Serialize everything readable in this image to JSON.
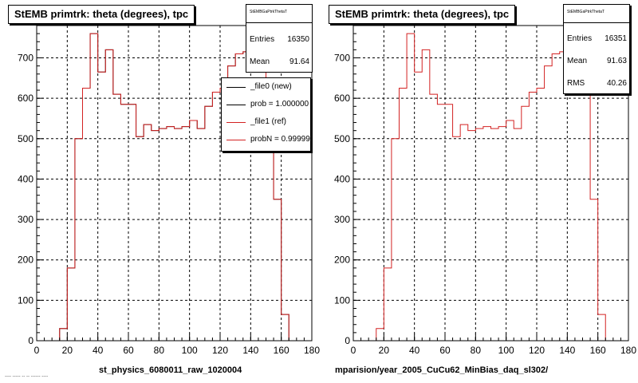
{
  "colors": {
    "new": "#000000",
    "ref": "#d32222",
    "grid": "#000000",
    "frame": "#000000"
  },
  "left": {
    "title": "StEMB primtrk: theta (degrees), tpc",
    "stats": {
      "name": "StEMBGaPtrkThetaT",
      "rows": [
        {
          "label": "Entries",
          "value": "16350"
        },
        {
          "label": "Mean",
          "value": "91.64"
        }
      ]
    },
    "legend": [
      {
        "label": "_file0 (new)",
        "color": "new"
      },
      {
        "label": "prob = 1.000000",
        "color": "new"
      },
      {
        "label": "_file1 (ref)",
        "color": "ref"
      },
      {
        "label": "probN = 0.999999",
        "color": "ref"
      }
    ],
    "footer": "st_physics_6080011_raw_1020004",
    "bottom_left_text": "---- ----- -- -- ------ ----"
  },
  "right": {
    "title": "StEMB primtrk: theta (degrees), tpc",
    "stats": {
      "name": "StEMBGaPtrkThetaT",
      "rows": [
        {
          "label": "Entries",
          "value": "16351"
        },
        {
          "label": "Mean",
          "value": "91.63"
        },
        {
          "label": "RMS",
          "value": "40.26"
        }
      ]
    },
    "footer": "mparision/year_2005_CuCu62_MinBias_daq_sl302/"
  },
  "chart_data": [
    {
      "type": "area",
      "title": "StEMB primtrk: theta (degrees), tpc",
      "xlabel": "",
      "ylabel": "",
      "xlim": [
        0,
        180
      ],
      "ylim": [
        0,
        780
      ],
      "x_ticks": [
        0,
        20,
        40,
        60,
        80,
        100,
        120,
        140,
        160,
        180
      ],
      "y_ticks": [
        0,
        100,
        200,
        300,
        400,
        500,
        600,
        700
      ],
      "grid": true,
      "bin_edges": [
        0,
        5,
        10,
        15,
        20,
        25,
        30,
        35,
        40,
        45,
        50,
        55,
        60,
        65,
        70,
        75,
        80,
        85,
        90,
        95,
        100,
        105,
        110,
        115,
        120,
        125,
        130,
        135,
        140,
        145,
        150,
        155,
        160,
        165,
        170,
        175,
        180
      ],
      "series": [
        {
          "name": "_file0 (new)",
          "color": "new",
          "values": [
            0,
            0,
            0,
            30,
            180,
            500,
            625,
            760,
            665,
            720,
            610,
            585,
            585,
            505,
            535,
            520,
            525,
            530,
            525,
            530,
            545,
            525,
            580,
            615,
            625,
            680,
            710,
            715,
            730,
            720,
            610,
            350,
            65,
            0,
            0,
            0
          ]
        },
        {
          "name": "_file1 (ref)",
          "color": "ref",
          "values": [
            0,
            0,
            0,
            30,
            180,
            500,
            625,
            760,
            665,
            720,
            610,
            585,
            585,
            505,
            535,
            520,
            525,
            530,
            525,
            530,
            545,
            525,
            580,
            615,
            625,
            680,
            710,
            715,
            730,
            720,
            610,
            350,
            65,
            0,
            0,
            0
          ]
        }
      ]
    },
    {
      "type": "area",
      "title": "StEMB primtrk: theta (degrees), tpc",
      "xlabel": "",
      "ylabel": "",
      "xlim": [
        0,
        180
      ],
      "ylim": [
        0,
        780
      ],
      "x_ticks": [
        0,
        20,
        40,
        60,
        80,
        100,
        120,
        140,
        160,
        180
      ],
      "y_ticks": [
        0,
        100,
        200,
        300,
        400,
        500,
        600,
        700
      ],
      "grid": true,
      "bin_edges": [
        0,
        5,
        10,
        15,
        20,
        25,
        30,
        35,
        40,
        45,
        50,
        55,
        60,
        65,
        70,
        75,
        80,
        85,
        90,
        95,
        100,
        105,
        110,
        115,
        120,
        125,
        130,
        135,
        140,
        145,
        150,
        155,
        160,
        165,
        170,
        175,
        180
      ],
      "series": [
        {
          "name": "",
          "color": "ref",
          "values": [
            0,
            0,
            0,
            30,
            180,
            500,
            625,
            760,
            665,
            720,
            610,
            585,
            585,
            505,
            535,
            520,
            525,
            530,
            525,
            530,
            545,
            525,
            580,
            615,
            625,
            680,
            710,
            715,
            730,
            720,
            610,
            350,
            65,
            0,
            0,
            0
          ]
        }
      ]
    }
  ]
}
